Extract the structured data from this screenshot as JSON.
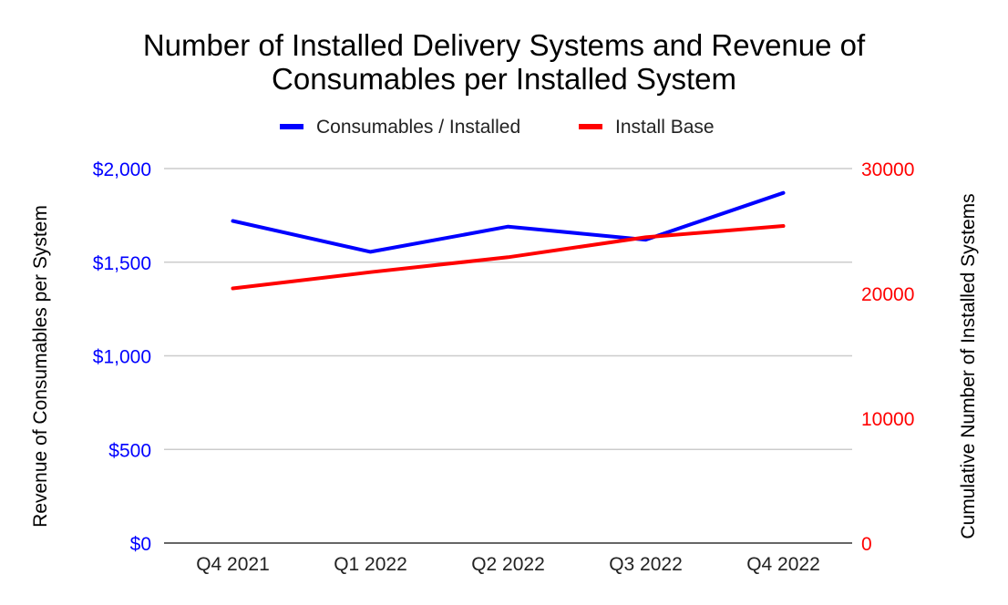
{
  "chart_data": {
    "type": "line",
    "title_lines": [
      "Number of Installed Delivery Systems and Revenue of",
      "Consumables per Installed System"
    ],
    "categories": [
      "Q4 2021",
      "Q1 2022",
      "Q2 2022",
      "Q3 2022",
      "Q4 2022"
    ],
    "series": [
      {
        "name": "Consumables / Installed",
        "axis": "left",
        "color": "#0000ff",
        "values": [
          1720,
          1555,
          1690,
          1620,
          1870
        ]
      },
      {
        "name": "Install Base",
        "axis": "right",
        "color": "#ff0000",
        "values": [
          20400,
          21700,
          22900,
          24500,
          25400
        ]
      }
    ],
    "left_axis": {
      "label": "Revenue of Consumables per System",
      "ticks": [
        0,
        500,
        1000,
        1500,
        2000
      ],
      "tick_labels": [
        "$0",
        "$500",
        "$1,000",
        "$1,500",
        "$2,000"
      ],
      "range": [
        0,
        2000
      ],
      "color": "#0000ff"
    },
    "right_axis": {
      "label": "Cumulative Number of Installed Systems",
      "ticks": [
        0,
        10000,
        20000,
        30000
      ],
      "tick_labels": [
        "0",
        "10000",
        "20000",
        "30000"
      ],
      "range": [
        0,
        30000
      ],
      "color": "#ff0000"
    },
    "grid": true,
    "legend_position": "top-center"
  }
}
